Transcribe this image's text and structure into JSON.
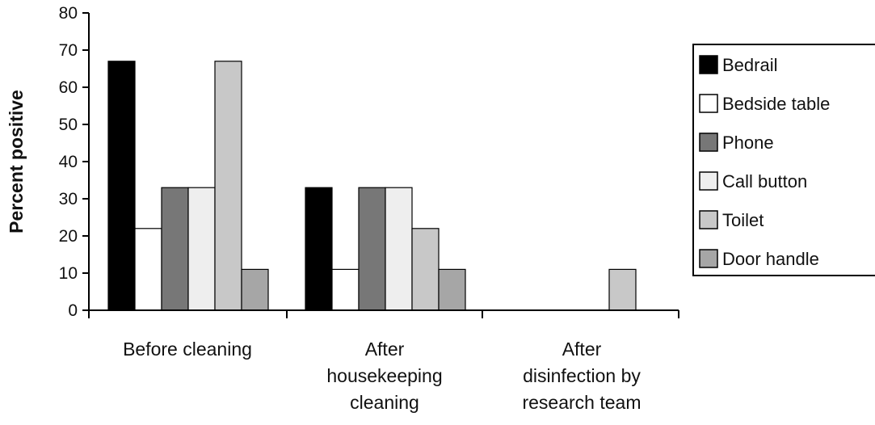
{
  "chart_data": {
    "type": "bar",
    "ylabel": "Percent positive",
    "xlabel": "",
    "ylim": [
      0,
      80
    ],
    "yticks": [
      0,
      10,
      20,
      30,
      40,
      50,
      60,
      70,
      80
    ],
    "grid": false,
    "legend_position": "right",
    "categories": [
      [
        "Before cleaning"
      ],
      [
        "After",
        "housekeeping",
        "cleaning"
      ],
      [
        "After",
        "disinfection by",
        "research team"
      ]
    ],
    "series": [
      {
        "name": "Bedrail",
        "color": "#000000",
        "values": [
          67,
          33,
          0
        ]
      },
      {
        "name": "Bedside table",
        "color": "#ffffff",
        "values": [
          22,
          11,
          0
        ]
      },
      {
        "name": "Phone",
        "color": "#777777",
        "values": [
          33,
          33,
          0
        ]
      },
      {
        "name": "Call button",
        "color": "#eeeeee",
        "values": [
          33,
          33,
          0
        ]
      },
      {
        "name": "Toilet",
        "color": "#c8c8c8",
        "values": [
          67,
          22,
          11
        ]
      },
      {
        "name": "Door handle",
        "color": "#a6a6a6",
        "values": [
          11,
          11,
          0
        ]
      }
    ]
  }
}
